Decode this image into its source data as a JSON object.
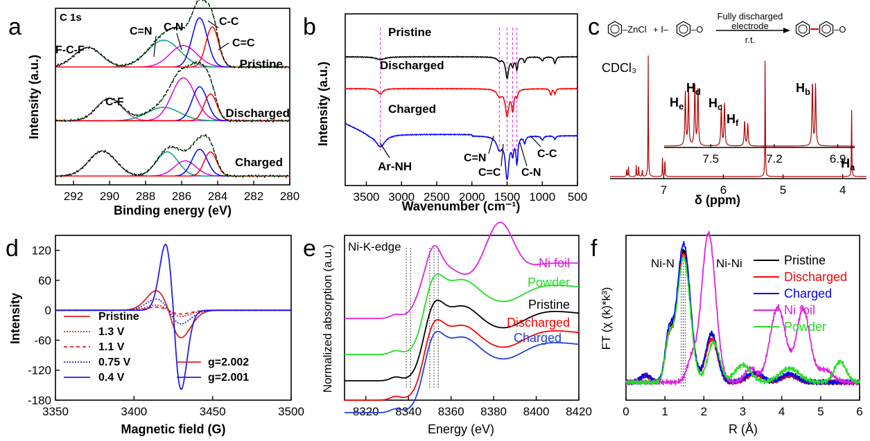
{
  "panels": [
    {
      "id": "a",
      "type": "line",
      "letter": "a",
      "corner_label": "C 1s",
      "xlabel": "Binding energy (eV)",
      "ylabel": "Intensity (a.u.)",
      "xlim": [
        293,
        280
      ],
      "xticks": [
        292,
        290,
        288,
        286,
        284,
        282,
        280
      ],
      "stacks": [
        {
          "name": "Pristine",
          "offset": 0.67,
          "peaks": [
            [
              291.2,
              0.22,
              0.75
            ],
            [
              287.0,
              0.3,
              0.9
            ],
            [
              285.9,
              0.24,
              0.75
            ],
            [
              285.0,
              0.55,
              0.42
            ],
            [
              284.3,
              0.45,
              0.35
            ]
          ]
        },
        {
          "name": "Discharged",
          "offset": 0.34,
          "peaks": [
            [
              290.0,
              0.25,
              0.7
            ],
            [
              287.0,
              0.15,
              0.9
            ],
            [
              285.9,
              0.48,
              0.65
            ],
            [
              285.0,
              0.38,
              0.42
            ],
            [
              284.4,
              0.3,
              0.35
            ]
          ]
        },
        {
          "name": "Charged",
          "offset": 0.0,
          "peaks": [
            [
              290.4,
              0.28,
              0.75
            ],
            [
              286.8,
              0.27,
              0.6
            ],
            [
              285.8,
              0.17,
              0.6
            ],
            [
              285.0,
              0.3,
              0.42
            ],
            [
              284.4,
              0.27,
              0.35
            ]
          ]
        }
      ],
      "component_colors": [
        "#c040c0",
        "#00a080",
        "#e000e0",
        "#0000ff",
        "#ff0000"
      ],
      "annotations": [
        "F-C-F",
        "C=N",
        "C-N",
        "C-C",
        "C=C",
        "C-F"
      ]
    },
    {
      "id": "b",
      "type": "line",
      "letter": "b",
      "xlabel": "Wavenumber (cm⁻¹)",
      "ylabel": "Intensity (a.u.)",
      "xlim": [
        3800,
        500
      ],
      "xticks": [
        3500,
        3000,
        2500,
        2000,
        1500,
        1000,
        500
      ],
      "series": [
        {
          "name": "Pristine",
          "color": "#000000"
        },
        {
          "name": "Discharged",
          "color": "#ff0000"
        },
        {
          "name": "Charged",
          "color": "#0000ff"
        }
      ],
      "dashed_lines": [
        3300,
        1610,
        1500,
        1420,
        1360
      ],
      "annotations": [
        "Ar-NH",
        "C=N",
        "C=C",
        "C-N",
        "C-C"
      ]
    },
    {
      "id": "c",
      "type": "line",
      "letter": "c",
      "xlabel": "δ (ppm)",
      "xlim": [
        7.9,
        3.6
      ],
      "xticks": [
        7,
        6,
        5,
        4
      ],
      "inset_xticks": [
        "7.5",
        "7.2",
        "6.9"
      ],
      "solvent_label": "CDCl₃",
      "reaction": {
        "reagent_1": "ZnCl",
        "reagent_2": "+ I–",
        "condition_1": "Fully discharged",
        "condition_2": "electrode",
        "condition_3": "r.t."
      },
      "proton_labels": [
        "He",
        "Hd",
        "Hc",
        "Hf",
        "Hb",
        "Ha"
      ],
      "color": "#b00000"
    },
    {
      "id": "d",
      "type": "line",
      "letter": "d",
      "xlabel": "Magnetic field (G)",
      "ylabel": "Intensity",
      "xlim": [
        3350,
        3500
      ],
      "ylim": [
        -180,
        150
      ],
      "xticks": [
        3350,
        3400,
        3450,
        3500
      ],
      "yticks": [
        120,
        60,
        0,
        -60,
        -120,
        -180
      ],
      "series": [
        {
          "name": "Pristine",
          "color": "#e02020",
          "dash": "",
          "amp": 38
        },
        {
          "name": "1.3 V",
          "color": "#e02020",
          "dash": "2,2",
          "amp": 10
        },
        {
          "name": "1.1 V",
          "color": "#e02020",
          "dash": "5,4",
          "amp": 6
        },
        {
          "name": "0.75 V",
          "color": "#2020e0",
          "dash": "2,2",
          "amp": 22
        },
        {
          "name": "0.4 V",
          "color": "#2020e0",
          "dash": "",
          "amp": 128
        }
      ],
      "g_legend": [
        {
          "label": "g=2.002",
          "color": "#e02020"
        },
        {
          "label": "g=2.001",
          "color": "#2020e0"
        }
      ]
    },
    {
      "id": "e",
      "type": "line",
      "letter": "e",
      "corner_label": "Ni-K-edge",
      "xlabel": "Energy (eV)",
      "ylabel": "Normalized absorption (a.u.)",
      "xlim": [
        8310,
        8420
      ],
      "xticks": [
        8320,
        8340,
        8360,
        8380,
        8400,
        8420
      ],
      "series": [
        {
          "name": "Ni foil",
          "color": "#e020e0"
        },
        {
          "name": "Powder",
          "color": "#20e020"
        },
        {
          "name": "Pristine",
          "color": "#000000"
        },
        {
          "name": "Discharged",
          "color": "#ff0000"
        },
        {
          "name": "Charged",
          "color": "#2040e0"
        }
      ]
    },
    {
      "id": "f",
      "type": "line",
      "letter": "f",
      "xlabel": "R (Å)",
      "ylabel": "FT (χ (k)*k³)",
      "xlim": [
        0,
        6
      ],
      "xticks": [
        0,
        1,
        2,
        3,
        4,
        5,
        6
      ],
      "peak_labels": [
        "Ni-N",
        "Ni-Ni"
      ],
      "series": [
        {
          "name": "Pristine",
          "color": "#000000"
        },
        {
          "name": "Discharged",
          "color": "#ff0000"
        },
        {
          "name": "Charged",
          "color": "#0000ff"
        },
        {
          "name": "Ni foil",
          "color": "#e020e0"
        },
        {
          "name": "Powder",
          "color": "#20e020"
        }
      ]
    }
  ]
}
